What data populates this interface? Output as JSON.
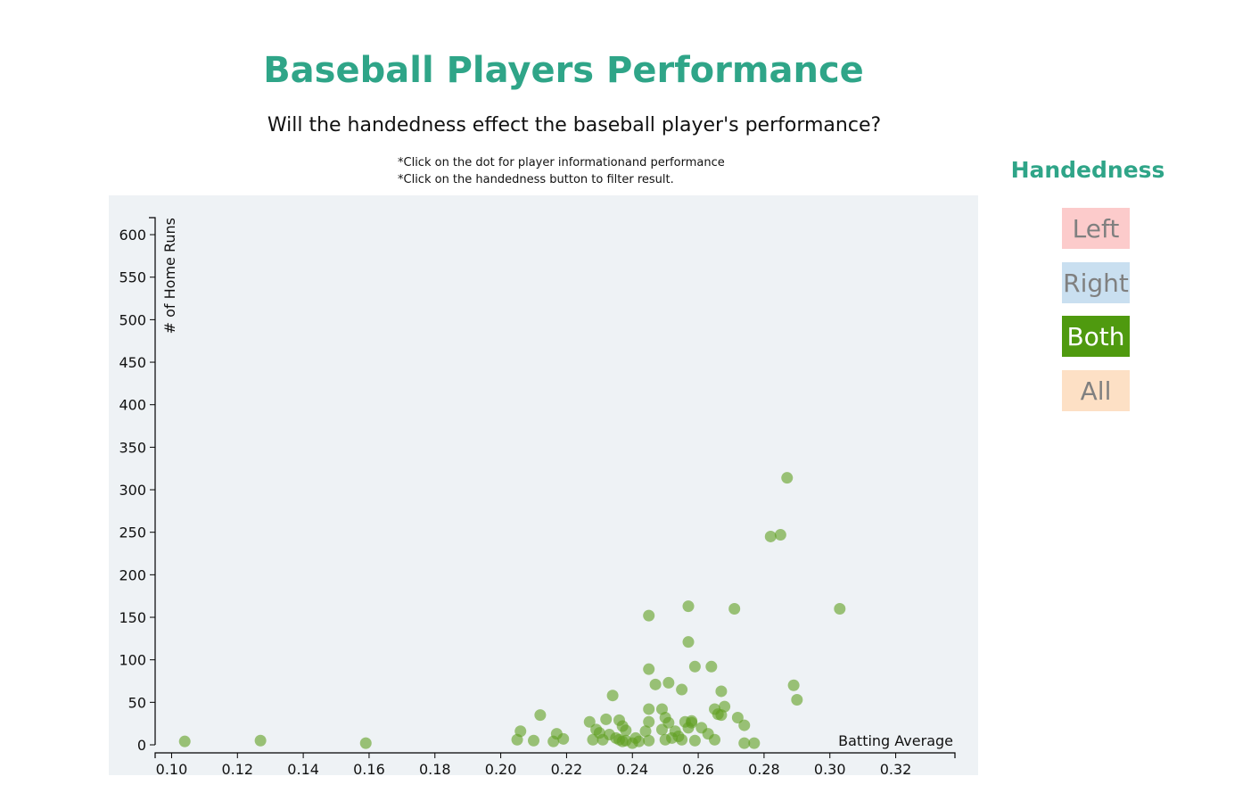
{
  "header": {
    "title": "Baseball Players Performance",
    "subtitle": "Will the handedness effect the baseball player's performance?",
    "instruction_1": "*Click on the dot for player informationand performance",
    "instruction_2": "*Click on the handedness button to filter result."
  },
  "legend": {
    "title": "Handedness",
    "buttons": [
      {
        "label": "Left",
        "color": "#fccbcb",
        "text_color": "#808080",
        "selected": false
      },
      {
        "label": "Right",
        "color": "#c9dff0",
        "text_color": "#808080",
        "selected": false
      },
      {
        "label": "Both",
        "color": "#4f9a0f",
        "text_color": "#ffffff",
        "selected": true
      },
      {
        "label": "All",
        "color": "#fde0c5",
        "text_color": "#808080",
        "selected": false
      }
    ]
  },
  "chart_data": {
    "type": "scatter",
    "xlabel": "Batting Average",
    "ylabel": "# of Home Runs",
    "xlim": [
      0.095,
      0.338
    ],
    "ylim": [
      0,
      620
    ],
    "xticks": [
      "0.10",
      "0.12",
      "0.14",
      "0.16",
      "0.18",
      "0.20",
      "0.22",
      "0.24",
      "0.26",
      "0.28",
      "0.30",
      "0.32"
    ],
    "yticks": [
      "0",
      "50",
      "100",
      "150",
      "200",
      "250",
      "300",
      "350",
      "400",
      "450",
      "500",
      "550",
      "600"
    ],
    "point_color": "#5f9e1f",
    "grid": false,
    "series": [
      {
        "name": "Both",
        "points": [
          [
            0.104,
            4
          ],
          [
            0.127,
            5
          ],
          [
            0.159,
            2
          ],
          [
            0.205,
            6
          ],
          [
            0.206,
            16
          ],
          [
            0.21,
            5
          ],
          [
            0.212,
            35
          ],
          [
            0.216,
            4
          ],
          [
            0.217,
            13
          ],
          [
            0.219,
            7
          ],
          [
            0.227,
            27
          ],
          [
            0.228,
            6
          ],
          [
            0.229,
            18
          ],
          [
            0.23,
            14
          ],
          [
            0.231,
            6
          ],
          [
            0.232,
            30
          ],
          [
            0.233,
            12
          ],
          [
            0.234,
            58
          ],
          [
            0.235,
            8
          ],
          [
            0.236,
            29
          ],
          [
            0.237,
            22
          ],
          [
            0.238,
            5
          ],
          [
            0.236,
            6
          ],
          [
            0.237,
            4
          ],
          [
            0.238,
            17
          ],
          [
            0.24,
            2
          ],
          [
            0.241,
            8
          ],
          [
            0.242,
            4
          ],
          [
            0.244,
            16
          ],
          [
            0.245,
            42
          ],
          [
            0.245,
            27
          ],
          [
            0.245,
            5
          ],
          [
            0.245,
            89
          ],
          [
            0.245,
            152
          ],
          [
            0.247,
            71
          ],
          [
            0.249,
            42
          ],
          [
            0.249,
            18
          ],
          [
            0.25,
            32
          ],
          [
            0.25,
            6
          ],
          [
            0.251,
            73
          ],
          [
            0.251,
            26
          ],
          [
            0.252,
            8
          ],
          [
            0.253,
            16
          ],
          [
            0.254,
            10
          ],
          [
            0.255,
            65
          ],
          [
            0.255,
            6
          ],
          [
            0.256,
            27
          ],
          [
            0.257,
            163
          ],
          [
            0.257,
            121
          ],
          [
            0.257,
            20
          ],
          [
            0.258,
            26
          ],
          [
            0.258,
            28
          ],
          [
            0.259,
            92
          ],
          [
            0.259,
            5
          ],
          [
            0.261,
            20
          ],
          [
            0.263,
            13
          ],
          [
            0.264,
            92
          ],
          [
            0.265,
            42
          ],
          [
            0.265,
            6
          ],
          [
            0.266,
            36
          ],
          [
            0.267,
            35
          ],
          [
            0.267,
            63
          ],
          [
            0.268,
            45
          ],
          [
            0.271,
            160
          ],
          [
            0.272,
            32
          ],
          [
            0.274,
            23
          ],
          [
            0.274,
            2
          ],
          [
            0.277,
            2
          ],
          [
            0.282,
            245
          ],
          [
            0.285,
            247
          ],
          [
            0.287,
            314
          ],
          [
            0.289,
            70
          ],
          [
            0.29,
            53
          ],
          [
            0.303,
            160
          ]
        ]
      }
    ]
  }
}
